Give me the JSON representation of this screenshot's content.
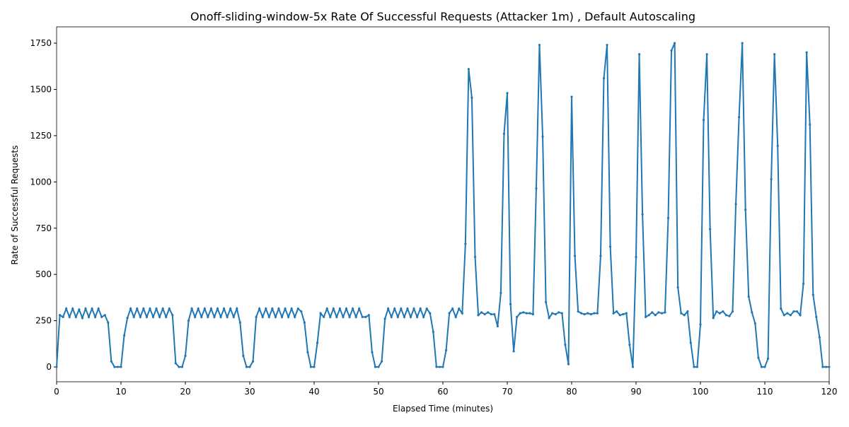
{
  "chart_data": {
    "type": "line",
    "title": "Onoff-sliding-window-5x Rate Of Successful Requests (Attacker 1m) , Default Autoscaling",
    "xlabel": "Elapsed Time (minutes)",
    "ylabel": "Rate of Successful Requests",
    "x": [
      0,
      0.5,
      1,
      1.5,
      2,
      2.5,
      3,
      3.5,
      4,
      4.5,
      5,
      5.5,
      6,
      6.5,
      7,
      7.5,
      8,
      8.5,
      9,
      9.5,
      10,
      10.5,
      11,
      11.5,
      12,
      12.5,
      13,
      13.5,
      14,
      14.5,
      15,
      15.5,
      16,
      16.5,
      17,
      17.5,
      18,
      18.5,
      19,
      19.5,
      20,
      20.5,
      21,
      21.5,
      22,
      22.5,
      23,
      23.5,
      24,
      24.5,
      25,
      25.5,
      26,
      26.5,
      27,
      27.5,
      28,
      28.5,
      29,
      29.5,
      30,
      30.5,
      31,
      31.5,
      32,
      32.5,
      33,
      33.5,
      34,
      34.5,
      35,
      35.5,
      36,
      36.5,
      37,
      37.5,
      38,
      38.5,
      39,
      39.5,
      40,
      40.5,
      41,
      41.5,
      42,
      42.5,
      43,
      43.5,
      44,
      44.5,
      45,
      45.5,
      46,
      46.5,
      47,
      47.5,
      48,
      48.5,
      49,
      49.5,
      50,
      50.5,
      51,
      51.5,
      52,
      52.5,
      53,
      53.5,
      54,
      54.5,
      55,
      55.5,
      56,
      56.5,
      57,
      57.5,
      58,
      58.5,
      59,
      59.5,
      60,
      60.5,
      61,
      61.5,
      62,
      62.5,
      63,
      63.5,
      64,
      64.5,
      65,
      65.5,
      66,
      66.5,
      67,
      67.5,
      68,
      68.5,
      69,
      69.5,
      70,
      70.5,
      71,
      71.5,
      72,
      72.5,
      73,
      73.5,
      74,
      74.5,
      75,
      75.5,
      76,
      76.5,
      77,
      77.5,
      78,
      78.5,
      79,
      79.5,
      80,
      80.5,
      81,
      81.5,
      82,
      82.5,
      83,
      83.5,
      84,
      84.5,
      85,
      85.5,
      86,
      86.5,
      87,
      87.5,
      88,
      88.5,
      89,
      89.5,
      90,
      90.5,
      91,
      91.5,
      92,
      92.5,
      93,
      93.5,
      94,
      94.5,
      95,
      95.5,
      96,
      96.5,
      97,
      97.5,
      98,
      98.5,
      99,
      99.5,
      100,
      100.5,
      101,
      101.5,
      102,
      102.5,
      103,
      103.5,
      104,
      104.5,
      105,
      105.5,
      106,
      106.5,
      107,
      107.5,
      108,
      108.5,
      109,
      109.5,
      110,
      110.5,
      111,
      111.5,
      112,
      112.5,
      113,
      113.5,
      114,
      114.5,
      115,
      115.5,
      116,
      116.5,
      117,
      117.5,
      118,
      118.5,
      119,
      119.5,
      120
    ],
    "series": [
      {
        "color": "#1f77b4",
        "values": [
          0,
          280,
          270,
          315,
          270,
          315,
          270,
          310,
          265,
          315,
          270,
          315,
          270,
          315,
          270,
          280,
          240,
          30,
          0,
          0,
          0,
          170,
          265,
          315,
          270,
          315,
          270,
          315,
          270,
          315,
          270,
          315,
          270,
          315,
          270,
          315,
          280,
          20,
          0,
          0,
          60,
          250,
          315,
          270,
          315,
          270,
          315,
          270,
          315,
          270,
          315,
          270,
          315,
          270,
          315,
          270,
          315,
          240,
          60,
          0,
          0,
          30,
          270,
          315,
          270,
          315,
          270,
          315,
          270,
          315,
          270,
          315,
          270,
          315,
          270,
          315,
          300,
          240,
          80,
          0,
          0,
          130,
          290,
          270,
          315,
          270,
          315,
          270,
          315,
          270,
          315,
          270,
          315,
          270,
          315,
          270,
          270,
          280,
          80,
          0,
          0,
          30,
          260,
          315,
          270,
          315,
          270,
          315,
          270,
          315,
          270,
          315,
          270,
          315,
          270,
          315,
          290,
          190,
          0,
          0,
          0,
          90,
          290,
          315,
          270,
          315,
          290,
          665,
          1610,
          1455,
          595,
          280,
          295,
          285,
          295,
          285,
          285,
          220,
          400,
          1260,
          1480,
          340,
          85,
          270,
          290,
          295,
          290,
          290,
          285,
          965,
          1740,
          1245,
          350,
          265,
          290,
          285,
          295,
          290,
          120,
          15,
          1460,
          600,
          300,
          290,
          285,
          290,
          285,
          290,
          290,
          600,
          1560,
          1740,
          650,
          290,
          300,
          280,
          285,
          290,
          120,
          0,
          595,
          1690,
          825,
          270,
          280,
          295,
          280,
          295,
          290,
          295,
          805,
          1710,
          1750,
          430,
          290,
          280,
          300,
          130,
          0,
          0,
          230,
          1335,
          1690,
          745,
          265,
          300,
          290,
          300,
          280,
          275,
          300,
          880,
          1350,
          1750,
          850,
          380,
          295,
          235,
          50,
          0,
          0,
          45,
          1015,
          1690,
          1195,
          315,
          280,
          290,
          280,
          300,
          300,
          280,
          450,
          1700,
          1310,
          390,
          270,
          160,
          0,
          0,
          0
        ]
      }
    ],
    "xlim": [
      0,
      120
    ],
    "xticks": [
      0,
      10,
      20,
      30,
      40,
      50,
      60,
      70,
      80,
      90,
      100,
      110,
      120
    ],
    "ylim": [
      -80,
      1838
    ],
    "yticks": [
      0,
      250,
      500,
      750,
      1000,
      1250,
      1500,
      1750
    ]
  }
}
